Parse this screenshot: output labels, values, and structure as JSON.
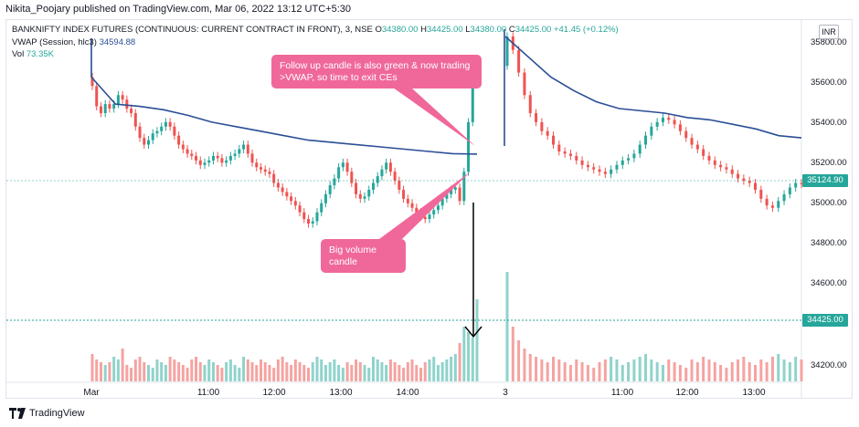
{
  "publisher": "Nikita_Poojary published on TradingView.com, Mar 06, 2022 13:12 UTC+5:30",
  "legend": {
    "symbol": "BANKNIFTY INDEX FUTURES (CONTINUOUS: CURRENT CONTRACT IN FRONT), 3, NSE",
    "o_label": "O",
    "o_value": "34380.00",
    "h_label": "H",
    "h_value": "34425.00",
    "l_label": "L",
    "l_value": "34380.00",
    "c_label": "C",
    "c_value": "34425.00",
    "change": "+41.45 (+0.12%)",
    "vwap_label": "VWAP (Session, hlc3)",
    "vwap_value": "34594.88",
    "vol_label": "Vol",
    "vol_value": "73.35K"
  },
  "currency": "INR",
  "footer": "TradingView",
  "annotations": {
    "top": "Follow up candle is also green & now trading >VWAP, so time to exit CEs",
    "bottom": "Big volume candle"
  },
  "colors": {
    "up": "#26a69a",
    "down": "#ef5350",
    "vol_up": "#8fd3cb",
    "vol_down": "#f5a3a1",
    "vwap": "#2a4e96",
    "callout": "#f0689a"
  },
  "chart_data": {
    "type": "candlestick",
    "x_ticks": [
      "Mar",
      "11:00",
      "12:00",
      "13:00",
      "14:00",
      "3",
      "11:00",
      "12:00",
      "13:00"
    ],
    "y_ticks": [
      "35800.00",
      "35600.00",
      "35400.00",
      "35200.00",
      "35000.00",
      "34800.00",
      "34600.00",
      "34200.00"
    ],
    "ylim": [
      34150,
      35880
    ],
    "last_price_tag": "35124.90",
    "volume_price_tag": "34425.00",
    "session1_close": [
      35560,
      35470,
      35440,
      35480,
      35460,
      35480,
      35520,
      35500,
      35460,
      35440,
      35380,
      35330,
      35300,
      35320,
      35350,
      35360,
      35380,
      35400,
      35380,
      35340,
      35300,
      35280,
      35260,
      35250,
      35230,
      35210,
      35220,
      35230,
      35250,
      35240,
      35220,
      35230,
      35250,
      35260,
      35280,
      35300,
      35260,
      35220,
      35200,
      35190,
      35180,
      35170,
      35130,
      35110,
      35090,
      35070,
      35050,
      35030,
      35000,
      34970,
      34950,
      34960,
      35000,
      35040,
      35080,
      35120,
      35150,
      35200,
      35220,
      35180,
      35130,
      35080,
      35060,
      35070,
      35100,
      35130,
      35160,
      35190,
      35220,
      35180,
      35140,
      35100,
      35060,
      35040,
      35020,
      35000,
      34980,
      34970,
      34990,
      35010,
      35030,
      35060,
      35080,
      35100,
      35110,
      35050,
      35180,
      35400,
      35600,
      35640
    ],
    "session2_close": [
      35780,
      35720,
      35620,
      35520,
      35440,
      35400,
      35360,
      35340,
      35300,
      35270,
      35260,
      35250,
      35230,
      35210,
      35200,
      35190,
      35180,
      35170,
      35190,
      35210,
      35230,
      35240,
      35260,
      35300,
      35340,
      35380,
      35400,
      35420,
      35410,
      35390,
      35360,
      35330,
      35300,
      35280,
      35250,
      35230,
      35210,
      35200,
      35190,
      35170,
      35150,
      35140,
      35130,
      35100,
      35060,
      35030,
      35020,
      35050,
      35080,
      35110,
      35130,
      35125
    ],
    "session1_vwap": [
      35600,
      35480,
      35470,
      35455,
      35430,
      35400,
      35380,
      35360,
      35340,
      35320,
      35310,
      35300,
      35290,
      35280,
      35270,
      35260,
      35258
    ],
    "session2_vwap": [
      35780,
      35690,
      35600,
      35540,
      35490,
      35460,
      35450,
      35440,
      35420,
      35410,
      35390,
      35370,
      35340,
      35330
    ],
    "session1_volume": [
      10,
      8,
      7,
      6,
      7,
      9,
      8,
      12,
      6,
      5,
      8,
      9,
      7,
      6,
      5,
      8,
      7,
      6,
      9,
      8,
      7,
      6,
      5,
      8,
      9,
      7,
      6,
      8,
      7,
      6,
      5,
      7,
      8,
      6,
      5,
      9,
      8,
      7,
      6,
      8,
      7,
      6,
      5,
      8,
      9,
      7,
      6,
      8,
      7,
      6,
      5,
      7,
      9,
      8,
      6,
      7,
      8,
      6,
      5,
      7,
      6,
      8,
      7,
      6,
      5,
      9,
      8,
      7,
      6,
      8,
      7,
      6,
      5,
      7,
      8,
      6,
      5,
      7,
      8,
      9,
      6,
      7,
      8,
      9,
      10,
      14,
      20,
      18,
      16,
      30
    ],
    "session2_volume": [
      40,
      20,
      15,
      12,
      10,
      9,
      8,
      7,
      9,
      8,
      7,
      6,
      8,
      7,
      6,
      5,
      7,
      8,
      9,
      8,
      6,
      7,
      8,
      9,
      10,
      8,
      7,
      6,
      8,
      7,
      6,
      5,
      8,
      7,
      9,
      8,
      7,
      6,
      5,
      7,
      8,
      9,
      7,
      6,
      8,
      7,
      9,
      10,
      8,
      7,
      9,
      8
    ]
  }
}
